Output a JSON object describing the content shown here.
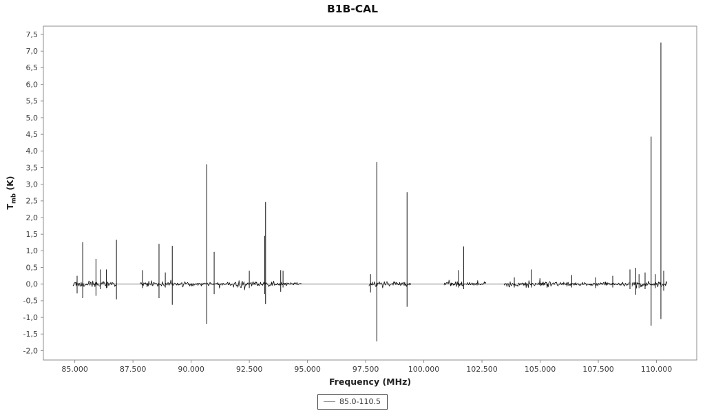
{
  "title": "B1B-CAL",
  "colors": {
    "background": "#ffffff",
    "plot_border": "#8c8c8c",
    "trace": "#101010",
    "zero_line": "#8a8a8a",
    "tick_label": "#3c3c3c",
    "legend_line": "#8f8f8f"
  },
  "legend": {
    "entries": [
      {
        "label": "85.0-110.5",
        "swatch": "line",
        "color": "#8f8f8f"
      }
    ]
  },
  "chart_data": {
    "type": "line",
    "title": "B1B-CAL",
    "xlabel": "Frequency (MHz)",
    "ylabel": "T_mb (K)",
    "ylabel_parts": {
      "symbol": "T",
      "subscript": "mb",
      "unit": " (K)"
    },
    "grid": false,
    "legend_position": "bottom-center",
    "xlim": [
      83.65,
      111.73
    ],
    "ylim": [
      -2.28,
      7.75
    ],
    "x_tick_values": [
      85,
      87.5,
      90,
      92.5,
      95,
      97.5,
      100,
      102.5,
      105,
      107.5,
      110
    ],
    "x_tick_labels": [
      "85.000",
      "87.500",
      "90.000",
      "92.500",
      "95.000",
      "97.500",
      "100.000",
      "102.500",
      "105.000",
      "107.500",
      "110.000"
    ],
    "y_tick_values": [
      7.5,
      7.0,
      6.5,
      6.0,
      5.5,
      5.0,
      4.5,
      4.0,
      3.5,
      3.0,
      2.5,
      2.0,
      1.5,
      1.0,
      0.5,
      0.0,
      -0.5,
      -1.0,
      -1.5,
      -2.0
    ],
    "y_tick_labels": [
      "7,5",
      "7,0",
      "6,5",
      "6,0",
      "5,5",
      "5,0",
      "4,5",
      "4,0",
      "3,5",
      "3,0",
      "2,5",
      "2,0",
      "1,5",
      "1,0",
      "0,5",
      "0,0",
      "-0,5",
      "-1,0",
      "-1,5",
      "-2,0"
    ],
    "zero_line": {
      "from": 84.92,
      "to": 110.45
    },
    "noise_segments": [
      [
        84.92,
        86.82,
        0.055
      ],
      [
        87.8,
        89.8,
        0.05
      ],
      [
        89.8,
        91.8,
        0.034
      ],
      [
        91.8,
        93.6,
        0.055
      ],
      [
        93.6,
        94.75,
        0.03
      ],
      [
        97.64,
        99.44,
        0.045
      ],
      [
        100.87,
        102.68,
        0.04
      ],
      [
        103.45,
        105.8,
        0.05
      ],
      [
        105.8,
        108.85,
        0.034
      ],
      [
        108.95,
        110.45,
        0.055
      ]
    ],
    "spikes": [
      [
        85.1,
        0.25,
        -0.28
      ],
      [
        85.34,
        1.26,
        -0.42
      ],
      [
        85.91,
        0.76,
        -0.35
      ],
      [
        86.1,
        0.44,
        -0.15
      ],
      [
        86.36,
        0.44,
        -0.12
      ],
      [
        86.79,
        1.33,
        -0.46
      ],
      [
        87.91,
        0.42,
        -0.12
      ],
      [
        88.62,
        1.21,
        -0.42
      ],
      [
        88.89,
        0.35,
        -0.1
      ],
      [
        89.19,
        1.15,
        -0.62
      ],
      [
        90.67,
        3.6,
        -1.2
      ],
      [
        90.99,
        0.97,
        -0.3
      ],
      [
        92.5,
        0.4,
        -0.12
      ],
      [
        93.16,
        1.45,
        -0.3
      ],
      [
        93.2,
        2.47,
        -0.6
      ],
      [
        93.85,
        0.42,
        -0.23
      ],
      [
        93.95,
        0.4,
        -0.1
      ],
      [
        97.71,
        0.3,
        -0.25
      ],
      [
        97.98,
        3.67,
        -1.72
      ],
      [
        99.28,
        2.76,
        -0.68
      ],
      [
        101.49,
        0.42,
        -0.1
      ],
      [
        101.71,
        1.13,
        -0.15
      ],
      [
        103.89,
        0.2,
        -0.1
      ],
      [
        104.62,
        0.44,
        -0.1
      ],
      [
        106.36,
        0.27,
        -0.1
      ],
      [
        107.38,
        0.2,
        -0.12
      ],
      [
        108.12,
        0.25,
        -0.1
      ],
      [
        108.86,
        0.44,
        -0.15
      ],
      [
        109.11,
        0.49,
        -0.32
      ],
      [
        109.25,
        0.3,
        -0.12
      ],
      [
        109.51,
        0.35,
        -0.15
      ],
      [
        109.77,
        4.43,
        -1.25
      ],
      [
        109.95,
        0.3,
        -0.12
      ],
      [
        110.19,
        7.26,
        -1.05
      ],
      [
        110.31,
        0.4,
        -0.2
      ]
    ]
  }
}
